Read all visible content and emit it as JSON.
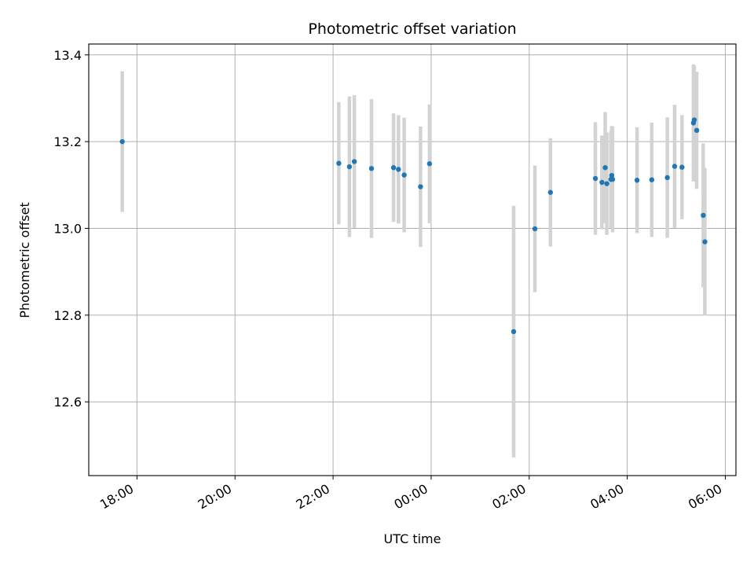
{
  "chart_data": {
    "type": "scatter",
    "title": "Photometric offset variation",
    "xlabel": "UTC time",
    "ylabel": "Photometric offset",
    "x_axis_kind": "time",
    "x_start_date": "",
    "xlim": [
      "17:01",
      "06:13"
    ],
    "ylim": [
      12.43,
      13.425
    ],
    "grid": true,
    "x_ticks": [
      "18:00",
      "20:00",
      "22:00",
      "00:00",
      "02:00",
      "04:00",
      "06:00"
    ],
    "y_ticks": [
      12.6,
      12.8,
      13.0,
      13.2,
      13.4
    ],
    "y_tick_labels": [
      "12.6",
      "12.8",
      "13.0",
      "13.2",
      "13.4"
    ],
    "marker_color": "#1f77b4",
    "errorbar_color": "#d3d3d3",
    "points": [
      {
        "x": "17:42",
        "y": 13.2,
        "err": 0.162
      },
      {
        "x": "22:07",
        "y": 13.15,
        "err": 0.141
      },
      {
        "x": "22:20",
        "y": 13.142,
        "err": 0.162
      },
      {
        "x": "22:26",
        "y": 13.154,
        "err": 0.153
      },
      {
        "x": "22:47",
        "y": 13.138,
        "err": 0.16
      },
      {
        "x": "23:14",
        "y": 13.14,
        "err": 0.125
      },
      {
        "x": "23:20",
        "y": 13.136,
        "err": 0.125
      },
      {
        "x": "23:27",
        "y": 13.123,
        "err": 0.132
      },
      {
        "x": "23:47",
        "y": 13.096,
        "err": 0.139
      },
      {
        "x": "23:58",
        "y": 13.149,
        "err": 0.137
      },
      {
        "x": "01:41",
        "y": 12.762,
        "err": 0.29
      },
      {
        "x": "02:07",
        "y": 12.999,
        "err": 0.146
      },
      {
        "x": "02:26",
        "y": 13.083,
        "err": 0.125
      },
      {
        "x": "03:21",
        "y": 13.115,
        "err": 0.13
      },
      {
        "x": "03:29",
        "y": 13.106,
        "err": 0.108
      },
      {
        "x": "03:33",
        "y": 13.14,
        "err": 0.128
      },
      {
        "x": "03:35",
        "y": 13.103,
        "err": 0.118
      },
      {
        "x": "03:40",
        "y": 13.113,
        "err": 0.112
      },
      {
        "x": "03:41",
        "y": 13.122,
        "err": 0.114
      },
      {
        "x": "03:42",
        "y": 13.113,
        "err": 0.122
      },
      {
        "x": "04:12",
        "y": 13.111,
        "err": 0.122
      },
      {
        "x": "04:30",
        "y": 13.112,
        "err": 0.132
      },
      {
        "x": "04:49",
        "y": 13.117,
        "err": 0.139
      },
      {
        "x": "04:58",
        "y": 13.143,
        "err": 0.142
      },
      {
        "x": "05:07",
        "y": 13.141,
        "err": 0.12
      },
      {
        "x": "05:21",
        "y": 13.243,
        "err": 0.135
      },
      {
        "x": "05:22",
        "y": 13.25,
        "err": 0.125
      },
      {
        "x": "05:25",
        "y": 13.226,
        "err": 0.135
      },
      {
        "x": "05:33",
        "y": 13.03,
        "err": 0.166
      },
      {
        "x": "05:35",
        "y": 12.969,
        "err": 0.17
      }
    ]
  }
}
